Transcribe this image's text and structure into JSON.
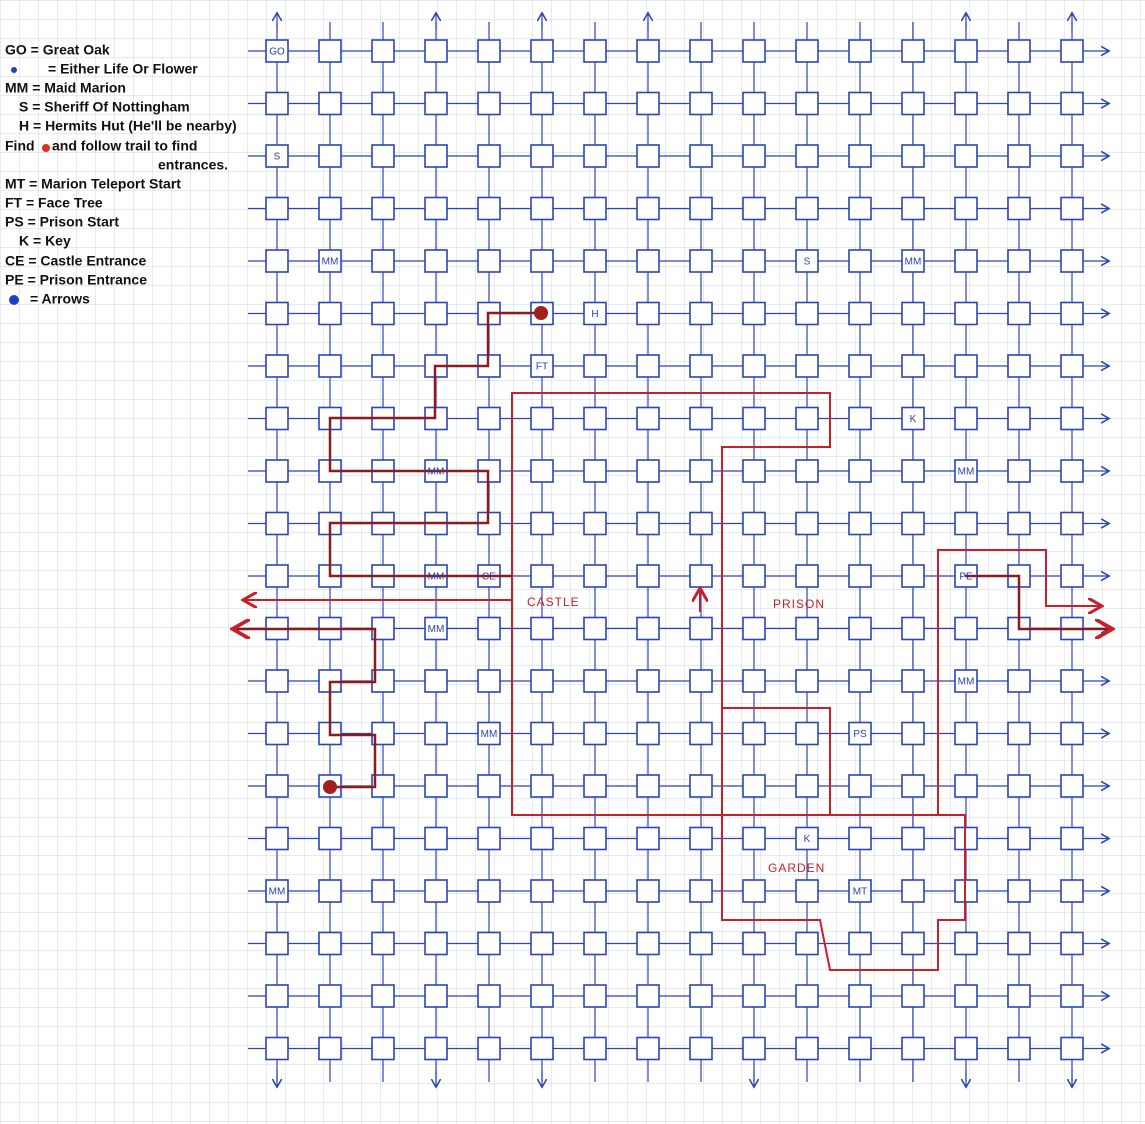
{
  "legend": [
    "GO = Great Oak",
    "= Either Life Or Flower",
    "MM = Maid Marion",
    "S = Sheriff Of Nottingham",
    "H = Hermits Hut (He'll be nearby)",
    "Find",
    "and follow trail to find",
    "entrances.",
    "MT = Marion Teleport Start",
    "FT = Face Tree",
    "PS = Prison Start",
    "K = Key",
    "CE = Castle Entrance",
    "PE = Prison Entrance",
    "= Arrows"
  ],
  "cells": [
    "GO",
    "S",
    "MM",
    "S",
    "MM",
    "H",
    "FT",
    "K",
    "MM",
    "MM",
    "MM",
    "CE",
    "PE",
    "MM",
    "MM",
    "MM",
    "PS",
    "K",
    "MM",
    "MT"
  ],
  "regions": [
    "CASTLE",
    "PRISON",
    "GARDEN"
  ]
}
